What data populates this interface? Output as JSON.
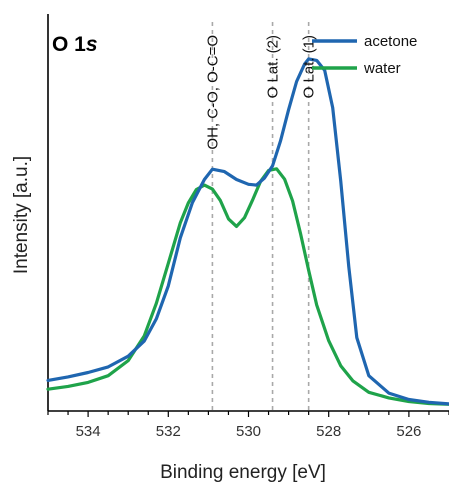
{
  "chart_data": {
    "type": "line",
    "title_main": "O 1",
    "title_sub": "s",
    "xlabel": "Binding energy [eV]",
    "ylabel": "Intensity [a.u.]",
    "xlim": [
      535,
      525
    ],
    "ylim": [
      0,
      1.0
    ],
    "x_ticks": [
      534,
      532,
      530,
      528,
      526
    ],
    "x_tick_labels": [
      "534",
      "532",
      "530",
      "528",
      "526"
    ],
    "grid": false,
    "legend_position": "top-right",
    "annotations": [
      {
        "x": 530.9,
        "label": "OH, C-O, O-C=O"
      },
      {
        "x": 529.4,
        "label": "O Lat. (2)"
      },
      {
        "x": 528.5,
        "label": "O Lat. (1)"
      }
    ],
    "series": [
      {
        "name": "acetone",
        "color": "#1f66b0",
        "points": [
          [
            535.0,
            0.077
          ],
          [
            534.5,
            0.086
          ],
          [
            534.0,
            0.097
          ],
          [
            533.5,
            0.111
          ],
          [
            533.0,
            0.138
          ],
          [
            532.6,
            0.176
          ],
          [
            532.3,
            0.232
          ],
          [
            532.0,
            0.315
          ],
          [
            531.7,
            0.436
          ],
          [
            531.4,
            0.525
          ],
          [
            531.1,
            0.583
          ],
          [
            530.9,
            0.609
          ],
          [
            530.6,
            0.603
          ],
          [
            530.3,
            0.583
          ],
          [
            530.0,
            0.571
          ],
          [
            529.8,
            0.569
          ],
          [
            529.6,
            0.587
          ],
          [
            529.4,
            0.618
          ],
          [
            529.2,
            0.681
          ],
          [
            529.0,
            0.759
          ],
          [
            528.8,
            0.83
          ],
          [
            528.6,
            0.874
          ],
          [
            528.5,
            0.887
          ],
          [
            528.3,
            0.883
          ],
          [
            528.1,
            0.858
          ],
          [
            527.9,
            0.764
          ],
          [
            527.7,
            0.58
          ],
          [
            527.5,
            0.363
          ],
          [
            527.3,
            0.185
          ],
          [
            527.0,
            0.089
          ],
          [
            526.5,
            0.045
          ],
          [
            526.0,
            0.029
          ],
          [
            525.5,
            0.022
          ],
          [
            525.0,
            0.018
          ]
        ]
      },
      {
        "name": "water",
        "color": "#1fa34a",
        "points": [
          [
            535.0,
            0.055
          ],
          [
            534.5,
            0.062
          ],
          [
            534.0,
            0.072
          ],
          [
            533.5,
            0.089
          ],
          [
            533.0,
            0.127
          ],
          [
            532.6,
            0.189
          ],
          [
            532.3,
            0.271
          ],
          [
            532.0,
            0.372
          ],
          [
            531.7,
            0.474
          ],
          [
            531.5,
            0.524
          ],
          [
            531.3,
            0.558
          ],
          [
            531.1,
            0.569
          ],
          [
            530.9,
            0.559
          ],
          [
            530.7,
            0.53
          ],
          [
            530.5,
            0.484
          ],
          [
            530.3,
            0.465
          ],
          [
            530.1,
            0.487
          ],
          [
            529.9,
            0.531
          ],
          [
            529.7,
            0.578
          ],
          [
            529.5,
            0.606
          ],
          [
            529.3,
            0.61
          ],
          [
            529.1,
            0.584
          ],
          [
            528.9,
            0.529
          ],
          [
            528.7,
            0.446
          ],
          [
            528.5,
            0.354
          ],
          [
            528.3,
            0.267
          ],
          [
            528.0,
            0.177
          ],
          [
            527.7,
            0.114
          ],
          [
            527.4,
            0.076
          ],
          [
            527.0,
            0.047
          ],
          [
            526.5,
            0.033
          ],
          [
            526.0,
            0.024
          ],
          [
            525.5,
            0.019
          ],
          [
            525.0,
            0.017
          ]
        ]
      }
    ]
  }
}
